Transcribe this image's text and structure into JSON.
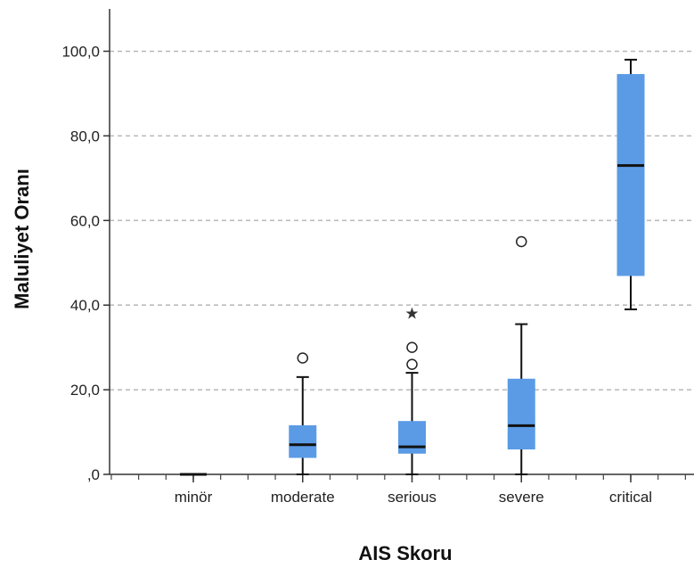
{
  "chart_data": {
    "type": "boxplot",
    "xlabel": "AIS Skoru",
    "ylabel": "Maluliyet Oranı",
    "ylim": [
      0,
      110
    ],
    "yticks": [
      0,
      20,
      40,
      60,
      80,
      100
    ],
    "ytick_labels": [
      ",0",
      "20,0",
      "40,0",
      "60,0",
      "80,0",
      "100,0"
    ],
    "grid": "horizontal-dashed",
    "box_color": "#5b9be6",
    "categories": [
      "minör",
      "moderate",
      "serious",
      "severe",
      "critical"
    ],
    "boxes": [
      {
        "category": "minör",
        "whisker_low": 0,
        "q1": 0,
        "median": 0,
        "q3": 0,
        "whisker_high": 0,
        "outliers": [],
        "extremes": []
      },
      {
        "category": "moderate",
        "whisker_low": 0,
        "q1": 4,
        "median": 7,
        "q3": 11.5,
        "whisker_high": 23,
        "outliers": [
          27.5
        ],
        "extremes": []
      },
      {
        "category": "serious",
        "whisker_low": 0,
        "q1": 5,
        "median": 6.5,
        "q3": 12.5,
        "whisker_high": 24,
        "outliers": [
          26,
          30
        ],
        "extremes": [
          38
        ]
      },
      {
        "category": "severe",
        "whisker_low": 0,
        "q1": 6,
        "median": 11.5,
        "q3": 22.5,
        "whisker_high": 35.5,
        "outliers": [
          55
        ],
        "extremes": []
      },
      {
        "category": "critical",
        "whisker_low": 39,
        "q1": 47,
        "median": 73,
        "q3": 94.5,
        "whisker_high": 98,
        "outliers": [],
        "extremes": []
      }
    ]
  }
}
